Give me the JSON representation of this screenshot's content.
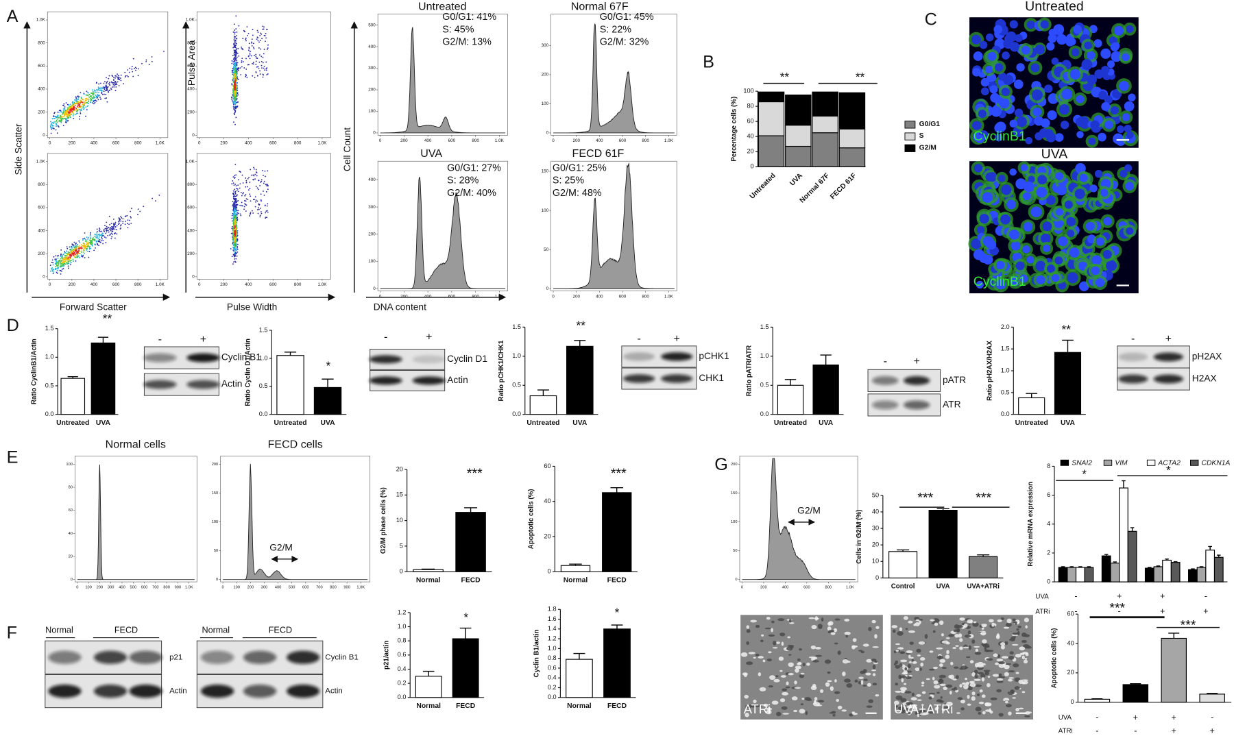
{
  "panel_labels": [
    "A",
    "B",
    "C",
    "D",
    "E",
    "F",
    "G"
  ],
  "axis_titles": [
    "Side Scatter",
    "Forward Scatter",
    "Pulse Area",
    "Pulse Width",
    "Cell Count",
    "DNA content"
  ],
  "dot_plots": [
    {
      "xlim": [
        0,
        1050
      ],
      "ylim": [
        0,
        1050
      ],
      "xticks": [
        0,
        200,
        400,
        600,
        800,
        {
          "value": 1000,
          "label": "1.0K"
        }
      ],
      "yticks": [
        0,
        200,
        400,
        600,
        800,
        {
          "value": 1000,
          "label": "1.0K"
        }
      ]
    },
    {
      "xlim": [
        0,
        1050
      ],
      "ylim": [
        0,
        1050
      ],
      "xticks": [
        0,
        200,
        400,
        600,
        800,
        {
          "value": 1000,
          "label": "1.0K"
        }
      ],
      "yticks": [
        0,
        200,
        400,
        600,
        800,
        {
          "value": 1000,
          "label": "1.0K"
        }
      ]
    },
    {
      "xlim": [
        0,
        1050
      ],
      "ylim": [
        0,
        1050
      ],
      "xticks": [
        0,
        200,
        400,
        600,
        800,
        {
          "value": 1000,
          "label": "1.0K"
        }
      ],
      "yticks": [
        0,
        200,
        400,
        600,
        800,
        {
          "value": 1000,
          "label": "1.0K"
        }
      ]
    },
    {
      "xlim": [
        0,
        1050
      ],
      "ylim": [
        0,
        1050
      ],
      "xticks": [
        0,
        200,
        400,
        600,
        800,
        {
          "value": 1000,
          "label": "1.0K"
        }
      ],
      "yticks": [
        0,
        200,
        400,
        600,
        800,
        {
          "value": 1000,
          "label": "1.0K"
        }
      ]
    }
  ],
  "histograms": [
    {
      "title": "Untreated",
      "stats": [
        "G0/G1: 41%",
        "S: 45%",
        "G2/M: 13%"
      ],
      "xlim": [
        0,
        1050
      ],
      "ylim": [
        0,
        540
      ],
      "xticks": [
        0,
        200,
        400,
        600,
        800,
        {
          "value": 1000,
          "label": "1.0K"
        }
      ],
      "yticks": [
        0,
        100,
        200,
        300,
        400,
        500
      ]
    },
    {
      "title": "Normal 67F",
      "stats": [
        "G0/G1: 45%",
        "S: 22%",
        "G2/M: 32%"
      ],
      "xlim": [
        0,
        1050
      ],
      "ylim": [
        0,
        400
      ],
      "xticks": [
        0,
        200,
        400,
        600,
        800,
        {
          "value": 1000,
          "label": "1.0K"
        }
      ],
      "yticks": [
        0,
        100,
        200,
        300
      ]
    },
    {
      "title": "UVA",
      "stats": [
        "G0/G1: 27%",
        "S: 28%",
        "G2/M: 40%"
      ],
      "xlim": [
        0,
        1050
      ],
      "ylim": [
        0,
        460
      ],
      "xticks": [
        0,
        200,
        400,
        600,
        800,
        {
          "value": 1000,
          "label": "1.0K"
        }
      ],
      "yticks": [
        0,
        100,
        200,
        300,
        400
      ]
    },
    {
      "title": "FECD 61F",
      "stats": [
        "G0/G1: 25%",
        "S: 25%",
        "G2/M: 48%"
      ],
      "xlim": [
        0,
        1050
      ],
      "ylim": [
        0,
        160
      ],
      "xticks": [
        0,
        200,
        400,
        600,
        800,
        {
          "value": 1000,
          "label": "1.0K"
        }
      ],
      "yticks": [
        0,
        50,
        100,
        150
      ]
    },
    {
      "title": "Normal cells",
      "xlim": [
        0,
        1050
      ],
      "ylim": [
        0,
        105
      ],
      "xticks": [
        0,
        100,
        200,
        300,
        400,
        500,
        600,
        700,
        800,
        900,
        {
          "value": 1000,
          "label": "1.0K"
        }
      ],
      "yticks": [
        0,
        20,
        40,
        60,
        80,
        100
      ]
    },
    {
      "title": "FECD cells",
      "annotation": "G2/M",
      "xlim": [
        0,
        1050
      ],
      "ylim": [
        0,
        210
      ],
      "xticks": [
        0,
        100,
        200,
        300,
        400,
        500,
        600,
        700,
        800,
        900,
        {
          "value": 1000,
          "label": "1.0K"
        }
      ],
      "yticks": [
        0,
        50,
        100,
        150,
        200
      ]
    },
    {
      "annotation": "G2/M",
      "xlim": [
        0,
        1050
      ],
      "ylim": [
        0,
        210
      ],
      "xticks": [
        0,
        200,
        400,
        600,
        800,
        {
          "value": 1000,
          "label": "1.0K"
        }
      ],
      "yticks": [
        0,
        50,
        100,
        150,
        200
      ]
    }
  ],
  "blots": [
    {
      "signs": [
        "-",
        "+"
      ],
      "bands": [
        "Cyclin B1",
        "Actin"
      ]
    },
    {
      "signs": [
        "-",
        "+"
      ],
      "bands": [
        "Cyclin D1",
        "Actin"
      ]
    },
    {
      "signs": [
        "-",
        "+"
      ],
      "bands": [
        "pCHK1",
        "CHK1"
      ]
    },
    {
      "signs": [
        "-",
        "+"
      ],
      "bands": [
        "pATR",
        "ATR"
      ]
    },
    {
      "signs": [
        "-",
        "+"
      ],
      "bands": [
        "pH2AX",
        "H2AX"
      ]
    },
    {
      "groups": [
        "Normal",
        "FECD"
      ],
      "bands": [
        "p21",
        "Actin"
      ]
    },
    {
      "groups": [
        "Normal",
        "FECD"
      ],
      "bands": [
        "Cyclin B1",
        "Actin"
      ]
    }
  ],
  "micrographs": [
    {
      "title": "Untreated",
      "stain": "CyclinB1"
    },
    {
      "title": "UVA",
      "stain": "CyclinB1"
    },
    {
      "label": "ATRi"
    },
    {
      "label": "UVA+ATRi"
    }
  ],
  "chart_data": [
    {
      "type": "bar",
      "stacked": true,
      "ylabel": "Percentage cells (%)",
      "categories": [
        "Untreated",
        "UVA",
        "Normal 67F",
        "FECD 61F"
      ],
      "series": [
        {
          "name": "G0/G1",
          "color": "#808080",
          "values": [
            41,
            27,
            45,
            25
          ]
        },
        {
          "name": "S",
          "color": "#d9d9d9",
          "values": [
            45,
            28,
            22,
            25
          ]
        },
        {
          "name": "G2/M",
          "color": "#000000",
          "values": [
            13,
            40,
            32,
            48
          ]
        }
      ],
      "ylim": [
        0,
        100
      ],
      "yticks": [
        0,
        20,
        40,
        60,
        80,
        100
      ],
      "annotations": [
        "**",
        "**"
      ]
    },
    {
      "type": "bar",
      "ylabel": "Ratio CyclinB1/Actin",
      "categories": [
        "Untreated",
        "UVA"
      ],
      "series": [
        {
          "colors": [
            "#ffffff",
            "#000000"
          ],
          "values": [
            0.63,
            1.25
          ],
          "errors": [
            0.03,
            0.1
          ]
        }
      ],
      "ylim": [
        0,
        1.5
      ],
      "yticks": [
        {
          "value": 0,
          "label": "0.0"
        },
        0.5,
        {
          "value": 1,
          "label": "1.0"
        },
        1.5
      ],
      "annotations": [
        "**"
      ]
    },
    {
      "type": "bar",
      "ylabel": "Ratio Cyclin D1/Actin",
      "categories": [
        "Untreated",
        "UVA"
      ],
      "series": [
        {
          "colors": [
            "#ffffff",
            "#000000"
          ],
          "values": [
            1.05,
            0.48
          ],
          "errors": [
            0.06,
            0.15
          ]
        }
      ],
      "ylim": [
        0,
        1.5
      ],
      "yticks": [
        {
          "value": 0,
          "label": "0.0"
        },
        0.5,
        {
          "value": 1,
          "label": "1.0"
        },
        1.5
      ],
      "annotations": [
        "*"
      ]
    },
    {
      "type": "bar",
      "ylabel": "Ratio pCHK1/CHK1",
      "categories": [
        "Untreated",
        "UVA"
      ],
      "series": [
        {
          "colors": [
            "#ffffff",
            "#000000"
          ],
          "values": [
            0.32,
            1.17
          ],
          "errors": [
            0.1,
            0.1
          ]
        }
      ],
      "ylim": [
        0,
        1.5
      ],
      "yticks": [
        {
          "value": 0,
          "label": "0.0"
        },
        0.5,
        {
          "value": 1,
          "label": "1.0"
        },
        1.5
      ],
      "annotations": [
        "**"
      ]
    },
    {
      "type": "bar",
      "ylabel": "Ratio pATR/ATR",
      "categories": [
        "Untreated",
        "UVA"
      ],
      "series": [
        {
          "colors": [
            "#ffffff",
            "#000000"
          ],
          "values": [
            0.5,
            0.85
          ],
          "errors": [
            0.1,
            0.17
          ]
        }
      ],
      "ylim": [
        0,
        1.5
      ],
      "yticks": [
        {
          "value": 0,
          "label": "0.0"
        },
        0.5,
        {
          "value": 1,
          "label": "1.0"
        },
        1.5
      ],
      "annotations": []
    },
    {
      "type": "bar",
      "ylabel": "Ratio pH2AX/H2AX",
      "categories": [
        "Untreated",
        "UVA"
      ],
      "series": [
        {
          "colors": [
            "#ffffff",
            "#000000"
          ],
          "values": [
            0.38,
            1.42
          ],
          "errors": [
            0.1,
            0.28
          ]
        }
      ],
      "ylim": [
        0,
        2
      ],
      "yticks": [
        {
          "value": 0,
          "label": "0.0"
        },
        0.5,
        {
          "value": 1,
          "label": "1.0"
        },
        1.5,
        {
          "value": 2,
          "label": "2.0"
        }
      ],
      "annotations": [
        "**"
      ]
    },
    {
      "type": "bar",
      "ylabel": "G2/M phase cells (%)",
      "categories": [
        "Normal",
        "FECD"
      ],
      "series": [
        {
          "colors": [
            "#ffffff",
            "#000000"
          ],
          "values": [
            0.4,
            11.6
          ],
          "errors": [
            0.1,
            0.9
          ]
        }
      ],
      "ylim": [
        0,
        20
      ],
      "yticks": [
        0,
        5,
        10,
        15,
        20
      ],
      "annotations": [
        "***"
      ]
    },
    {
      "type": "bar",
      "ylabel": "Apoptotic cells (%)",
      "categories": [
        "Normal",
        "FECD"
      ],
      "series": [
        {
          "colors": [
            "#ffffff",
            "#000000"
          ],
          "values": [
            3.5,
            45
          ],
          "errors": [
            0.8,
            2.8
          ]
        }
      ],
      "ylim": [
        0,
        60
      ],
      "yticks": [
        0,
        20,
        40,
        60
      ],
      "annotations": [
        "***"
      ]
    },
    {
      "type": "bar",
      "ylabel": "p21/actin",
      "categories": [
        "Normal",
        "FECD"
      ],
      "series": [
        {
          "colors": [
            "#ffffff",
            "#000000"
          ],
          "values": [
            0.3,
            0.83
          ],
          "errors": [
            0.07,
            0.15
          ]
        }
      ],
      "ylim": [
        0,
        1.2
      ],
      "yticks": [
        {
          "value": 0,
          "label": "0.0"
        },
        0.2,
        0.4,
        0.6,
        0.8,
        {
          "value": 1,
          "label": "1.0"
        },
        1.2
      ],
      "annotations": [
        "*"
      ]
    },
    {
      "type": "bar",
      "ylabel": "Cyclin B1/actin",
      "categories": [
        "Normal",
        "FECD"
      ],
      "series": [
        {
          "colors": [
            "#ffffff",
            "#000000"
          ],
          "values": [
            0.78,
            1.4
          ],
          "errors": [
            0.12,
            0.08
          ]
        }
      ],
      "ylim": [
        0,
        1.8
      ],
      "yticks": [
        {
          "value": 0,
          "label": "0.0"
        },
        0.2,
        0.4,
        0.6,
        0.8,
        {
          "value": 1,
          "label": "1.0"
        },
        1.2,
        1.4,
        1.6,
        1.8
      ],
      "annotations": [
        "*"
      ]
    },
    {
      "type": "bar",
      "ylabel": "Cells in  G2/M (%)",
      "categories": [
        "Control",
        "UVA",
        "UVA+ATRi"
      ],
      "series": [
        {
          "colors": [
            "#ffffff",
            "#000000",
            "#808080"
          ],
          "values": [
            16,
            41,
            13
          ],
          "errors": [
            1,
            1,
            1
          ]
        }
      ],
      "ylim": [
        0,
        50
      ],
      "yticks": [
        0,
        10,
        20,
        30,
        40,
        50
      ],
      "annotations": [
        "***",
        "***"
      ]
    },
    {
      "type": "bar",
      "ylabel": "Relative mRNA expression",
      "categories": [
        null,
        null,
        null,
        null
      ],
      "series": [
        {
          "name": "SNAI2",
          "color": "#000000",
          "values": [
            1,
            1.8,
            0.95,
            0.85
          ],
          "errors": [
            0.05,
            0.1,
            0.05,
            0.05
          ]
        },
        {
          "name": "VIM",
          "color": "#a6a6a6",
          "values": [
            1,
            1.3,
            1.05,
            1
          ],
          "errors": [
            0.05,
            0.08,
            0.05,
            0.05
          ]
        },
        {
          "name": "ACTA2",
          "color": "#ffffff",
          "values": [
            1,
            6.5,
            1.5,
            2.2
          ],
          "errors": [
            0.05,
            0.5,
            0.08,
            0.25
          ]
        },
        {
          "name": "CDKN1A",
          "color": "#595959",
          "values": [
            1,
            3.5,
            1.35,
            1.7
          ],
          "errors": [
            0.05,
            0.25,
            0.05,
            0.15
          ]
        }
      ],
      "ylim": [
        0,
        8
      ],
      "yticks": [
        0,
        2,
        4,
        6,
        8
      ],
      "annotations": [
        "*",
        "*"
      ],
      "conditions": [
        {
          "label": "UVA",
          "signs": [
            "-",
            "+",
            "+",
            "-"
          ]
        },
        {
          "label": "ATRi",
          "signs": [
            "-",
            "-",
            "+",
            "+"
          ]
        }
      ]
    },
    {
      "type": "bar",
      "ylabel": "Apoptotic cells (%)",
      "categories": [
        null,
        null,
        null,
        null
      ],
      "series": [
        {
          "colors": [
            "#ffffff",
            "#000000",
            "#a6a6a6",
            "#e0e0e0"
          ],
          "values": [
            2,
            12,
            43.5,
            5.5
          ],
          "errors": [
            0.3,
            0.6,
            3.5,
            0.5
          ]
        }
      ],
      "ylim": [
        0,
        60
      ],
      "yticks": [
        0,
        20,
        40,
        60
      ],
      "annotations": [
        "***",
        "***"
      ],
      "conditions": [
        {
          "label": "UVA",
          "signs": [
            "-",
            "+",
            "+",
            "-"
          ]
        },
        {
          "label": "ATRi",
          "signs": [
            "-",
            "-",
            "+",
            "+"
          ]
        }
      ]
    }
  ]
}
